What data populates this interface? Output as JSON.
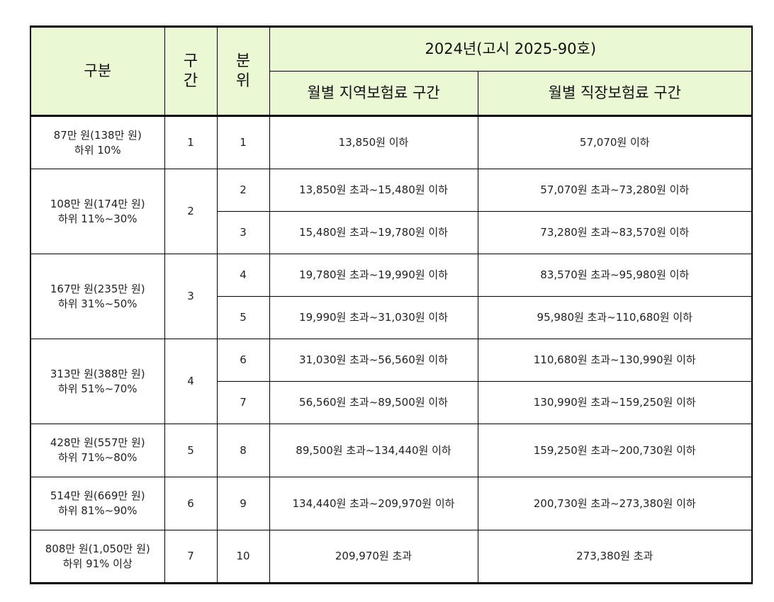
{
  "table": {
    "header": {
      "category": "구분",
      "section": [
        "구",
        "간"
      ],
      "decile": [
        "분",
        "위"
      ],
      "period": "2024년(고시 2025-90호)",
      "regional": "월별 지역보험료 구간",
      "workplace": "월별 직장보험료 구간"
    },
    "groups": [
      {
        "category_line1": "87만 원(138만 원)",
        "category_line2": "하위 10%",
        "section": "1",
        "rows": [
          {
            "decile": "1",
            "regional": "13,850원 이하",
            "workplace": "57,070원 이하"
          }
        ]
      },
      {
        "category_line1": "108만 원(174만 원)",
        "category_line2": "하위 11%~30%",
        "section": "2",
        "rows": [
          {
            "decile": "2",
            "regional": "13,850원 초과~15,480원 이하",
            "workplace": "57,070원 초과~73,280원 이하"
          },
          {
            "decile": "3",
            "regional": "15,480원 초과~19,780원 이하",
            "workplace": "73,280원 초과~83,570원 이하"
          }
        ]
      },
      {
        "category_line1": "167만 원(235만 원)",
        "category_line2": "하위 31%~50%",
        "section": "3",
        "rows": [
          {
            "decile": "4",
            "regional": "19,780원 초과~19,990원 이하",
            "workplace": "83,570원 초과~95,980원 이하"
          },
          {
            "decile": "5",
            "regional": "19,990원 초과~31,030원 이하",
            "workplace": "95,980원 초과~110,680원 이하"
          }
        ]
      },
      {
        "category_line1": "313만 원(388만 원)",
        "category_line2": "하위 51%~70%",
        "section": "4",
        "rows": [
          {
            "decile": "6",
            "regional": "31,030원 초과~56,560원 이하",
            "workplace": "110,680원 초과~130,990원 이하"
          },
          {
            "decile": "7",
            "regional": "56,560원 초과~89,500원 이하",
            "workplace": "130,990원 초과~159,250원 이하"
          }
        ]
      },
      {
        "category_line1": "428만 원(557만 원)",
        "category_line2": "하위 71%~80%",
        "section": "5",
        "rows": [
          {
            "decile": "8",
            "regional": "89,500원 초과~134,440원 이하",
            "workplace": "159,250원 초과~200,730원 이하"
          }
        ]
      },
      {
        "category_line1": "514만 원(669만 원)",
        "category_line2": "하위 81%~90%",
        "section": "6",
        "rows": [
          {
            "decile": "9",
            "regional": "134,440원 초과~209,970원 이하",
            "workplace": "200,730원 초과~273,380원 이하"
          }
        ]
      },
      {
        "category_line1": "808만 원(1,050만 원)",
        "category_line2": "하위 91% 이상",
        "section": "7",
        "rows": [
          {
            "decile": "10",
            "regional": "209,970원 초과",
            "workplace": "273,380원 초과"
          }
        ]
      }
    ]
  }
}
